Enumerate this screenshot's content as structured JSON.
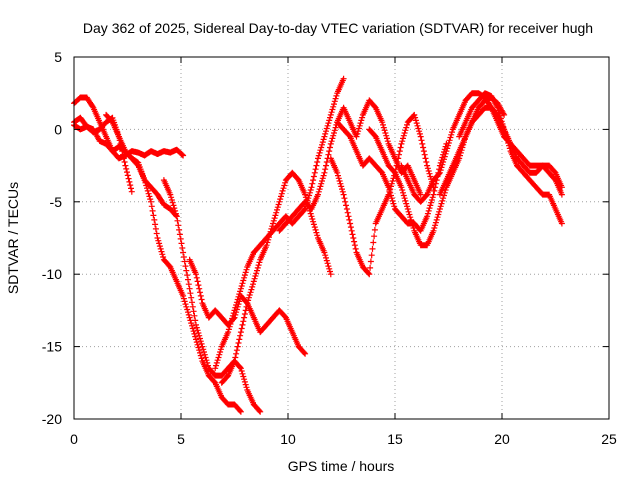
{
  "chart_data": {
    "type": "scatter",
    "title": "Day 362 of 2025, Sidereal Day-to-day VTEC variation (SDTVAR) for receiver hugh",
    "xlabel": "GPS time / hours",
    "ylabel": "SDTVAR / TECUs",
    "xlim": [
      0,
      25
    ],
    "ylim": [
      -20,
      5
    ],
    "xticks": [
      "0",
      "5",
      "10",
      "15",
      "20",
      "25"
    ],
    "yticks": [
      "5",
      "0",
      "-5",
      "-10",
      "-15",
      "-20"
    ],
    "grid": true,
    "marker": "plus",
    "color": "#ff0000",
    "series": [
      {
        "x": [
          0.0,
          0.3,
          0.6,
          0.9,
          1.2,
          1.5,
          1.8,
          2.1,
          2.4,
          2.7,
          3.0,
          3.3,
          3.6,
          3.9,
          4.2,
          4.5,
          4.8,
          5.1
        ],
        "y": [
          1.8,
          2.2,
          2.2,
          1.5,
          0.5,
          -0.5,
          -1.5,
          -2.0,
          -1.8,
          -1.5,
          -1.6,
          -1.8,
          -1.5,
          -1.7,
          -1.5,
          -1.6,
          -1.4,
          -1.8
        ]
      },
      {
        "x": [
          0.0,
          0.3,
          0.6,
          0.9,
          1.2,
          1.5,
          1.8,
          2.1,
          2.4,
          2.7,
          3.0,
          3.3,
          3.6,
          3.9,
          4.2,
          4.5,
          4.8
        ],
        "y": [
          0.3,
          0.0,
          0.2,
          0.0,
          -0.8,
          -1.0,
          -1.5,
          -1.2,
          -1.5,
          -2.0,
          -2.3,
          -3.5,
          -4.0,
          -4.5,
          -5.2,
          -5.5,
          -6.0
        ]
      },
      {
        "x": [
          0.0,
          0.3,
          0.6,
          0.9,
          1.2,
          1.5,
          1.8,
          2.1,
          2.4,
          2.7
        ],
        "y": [
          0.5,
          0.8,
          0.2,
          -0.2,
          0.0,
          0.5,
          0.8,
          -0.5,
          -2.5,
          -4.3
        ]
      },
      {
        "x": [
          1.5,
          1.8,
          2.1,
          2.4,
          2.7,
          3.0,
          3.3,
          3.6,
          3.9,
          4.2,
          4.5,
          4.8,
          5.1,
          5.4,
          5.7,
          6.0,
          6.3,
          6.6,
          6.9,
          7.2,
          7.5,
          7.8
        ],
        "y": [
          1.0,
          0.5,
          -0.5,
          -1.5,
          -2.0,
          -2.5,
          -3.5,
          -5.0,
          -7.5,
          -9.0,
          -9.5,
          -10.5,
          -11.5,
          -13.0,
          -14.5,
          -16.0,
          -17.0,
          -17.5,
          -18.5,
          -19.0,
          -19.0,
          -19.5
        ]
      },
      {
        "x": [
          4.2,
          4.5,
          4.8,
          5.1,
          5.4,
          5.7,
          6.0,
          6.3,
          6.6,
          6.9,
          7.2,
          7.5,
          7.8,
          8.1,
          8.4,
          8.7
        ],
        "y": [
          -3.5,
          -4.5,
          -6.0,
          -8.5,
          -11.0,
          -13.5,
          -15.0,
          -16.5,
          -17.0,
          -17.0,
          -16.5,
          -16.0,
          -16.5,
          -18.0,
          -19.0,
          -19.5
        ]
      },
      {
        "x": [
          5.4,
          5.7,
          6.0,
          6.3,
          6.6,
          6.9,
          7.2,
          7.5,
          7.8,
          8.1,
          8.4,
          8.7,
          9.0,
          9.3,
          9.6,
          9.9,
          10.2,
          10.5,
          10.8
        ],
        "y": [
          -9.0,
          -10.0,
          -12.0,
          -13.0,
          -12.5,
          -13.0,
          -13.5,
          -13.0,
          -11.5,
          -12.0,
          -13.0,
          -14.0,
          -13.5,
          -13.0,
          -12.5,
          -13.0,
          -14.0,
          -15.0,
          -15.5
        ]
      },
      {
        "x": [
          6.6,
          6.9,
          7.2,
          7.5,
          7.8,
          8.1,
          8.4,
          8.7,
          9.0,
          9.3,
          9.6,
          9.9,
          10.2,
          10.5,
          10.8,
          11.1,
          11.4,
          11.7,
          12.0,
          12.3,
          12.6
        ],
        "y": [
          -16.5,
          -15.0,
          -14.0,
          -12.5,
          -11.0,
          -9.5,
          -8.5,
          -8.0,
          -7.5,
          -7.0,
          -6.5,
          -6.0,
          -6.5,
          -6.0,
          -5.5,
          -4.0,
          -2.0,
          -0.5,
          1.0,
          2.5,
          3.5
        ]
      },
      {
        "x": [
          6.9,
          7.2,
          7.5,
          7.8,
          8.1,
          8.4,
          8.7,
          9.0,
          9.3,
          9.6,
          9.9,
          10.2,
          10.5,
          10.8,
          11.1,
          11.4,
          11.7,
          12.0
        ],
        "y": [
          -17.5,
          -17.0,
          -16.0,
          -14.0,
          -12.0,
          -10.5,
          -9.0,
          -8.0,
          -6.5,
          -5.0,
          -3.5,
          -3.0,
          -3.5,
          -4.5,
          -6.0,
          -7.5,
          -8.5,
          -10.0
        ]
      },
      {
        "x": [
          9.6,
          9.9,
          10.2,
          10.5,
          10.8,
          11.1,
          11.4,
          11.7,
          12.0,
          12.3,
          12.6,
          12.9,
          13.2,
          13.5,
          13.8,
          14.1,
          14.4,
          14.7,
          15.0,
          15.3,
          15.6,
          15.9,
          16.2
        ],
        "y": [
          -7.0,
          -6.5,
          -6.0,
          -5.5,
          -5.0,
          -5.5,
          -4.5,
          -3.0,
          -1.0,
          0.5,
          1.5,
          0.5,
          -0.5,
          1.0,
          2.0,
          1.5,
          0.5,
          -1.0,
          -2.0,
          -3.0,
          -2.5,
          -3.5,
          -4.5
        ]
      },
      {
        "x": [
          12.0,
          12.3,
          12.6,
          12.9,
          13.2,
          13.5,
          13.8,
          14.1,
          14.4,
          14.7,
          15.0,
          15.3,
          15.6,
          15.9,
          16.2,
          16.5,
          16.8
        ],
        "y": [
          -2.0,
          -3.0,
          -4.5,
          -6.5,
          -8.5,
          -9.5,
          -10.0,
          -6.5,
          -5.5,
          -4.5,
          -3.0,
          -1.0,
          0.5,
          1.0,
          -0.5,
          -2.5,
          -4.0
        ]
      },
      {
        "x": [
          12.3,
          12.6,
          12.9,
          13.2,
          13.5,
          13.8,
          14.1,
          14.4,
          14.7,
          15.0,
          15.3,
          15.6,
          15.9,
          16.2,
          16.5,
          16.8,
          17.1,
          17.4
        ],
        "y": [
          0.5,
          0.0,
          -0.5,
          -1.5,
          -2.5,
          -2.0,
          -2.5,
          -3.0,
          -4.0,
          -5.5,
          -6.0,
          -6.5,
          -6.5,
          -7.0,
          -6.0,
          -4.5,
          -2.5,
          -1.0
        ]
      },
      {
        "x": [
          13.8,
          14.1,
          14.4,
          14.7,
          15.0,
          15.3,
          15.6,
          15.9,
          16.2,
          16.5,
          16.8,
          17.1,
          17.4,
          17.7,
          18.0,
          18.3,
          18.6,
          18.9,
          19.2,
          19.5,
          19.8,
          20.1
        ],
        "y": [
          0.0,
          -0.5,
          -1.5,
          -2.5,
          -3.0,
          -4.0,
          -5.5,
          -7.0,
          -8.0,
          -8.0,
          -7.0,
          -5.5,
          -4.0,
          -3.0,
          -2.0,
          -0.5,
          0.5,
          1.5,
          2.0,
          2.2,
          1.8,
          1.0
        ]
      },
      {
        "x": [
          15.3,
          15.6,
          15.9,
          16.2,
          16.5,
          16.8,
          17.1,
          17.4,
          17.7,
          18.0,
          18.3,
          18.6,
          18.9,
          19.2,
          19.5,
          19.8,
          20.1,
          20.4,
          20.7,
          21.0,
          21.3,
          21.6,
          21.9,
          22.2,
          22.5,
          22.8
        ],
        "y": [
          -2.5,
          -3.5,
          -4.5,
          -5.0,
          -4.5,
          -3.5,
          -3.0,
          -1.5,
          0.0,
          1.0,
          2.0,
          2.5,
          2.5,
          2.2,
          1.5,
          0.5,
          -0.5,
          -1.0,
          -1.5,
          -2.0,
          -2.5,
          -2.5,
          -2.5,
          -3.0,
          -3.5,
          -4.5
        ]
      },
      {
        "x": [
          17.1,
          17.4,
          17.7,
          18.0,
          18.3,
          18.6,
          18.9,
          19.2,
          19.5,
          19.8,
          20.1,
          20.4,
          20.7,
          21.0,
          21.3,
          21.6,
          21.9,
          22.2,
          22.5,
          22.8
        ],
        "y": [
          -4.5,
          -3.5,
          -2.5,
          -1.5,
          -0.5,
          0.5,
          1.0,
          1.5,
          1.5,
          1.0,
          0.0,
          -1.0,
          -2.0,
          -2.5,
          -3.0,
          -3.0,
          -2.5,
          -2.5,
          -3.0,
          -4.0
        ]
      },
      {
        "x": [
          18.0,
          18.3,
          18.6,
          18.9,
          19.2,
          19.5,
          19.8,
          20.1,
          20.4,
          20.7,
          21.0,
          21.3,
          21.6,
          21.9,
          22.2,
          22.5,
          22.8
        ],
        "y": [
          -0.5,
          0.5,
          1.5,
          2.0,
          2.5,
          2.3,
          1.5,
          0.0,
          -1.5,
          -2.5,
          -3.0,
          -3.5,
          -4.0,
          -4.5,
          -4.5,
          -5.5,
          -6.5
        ]
      }
    ]
  }
}
